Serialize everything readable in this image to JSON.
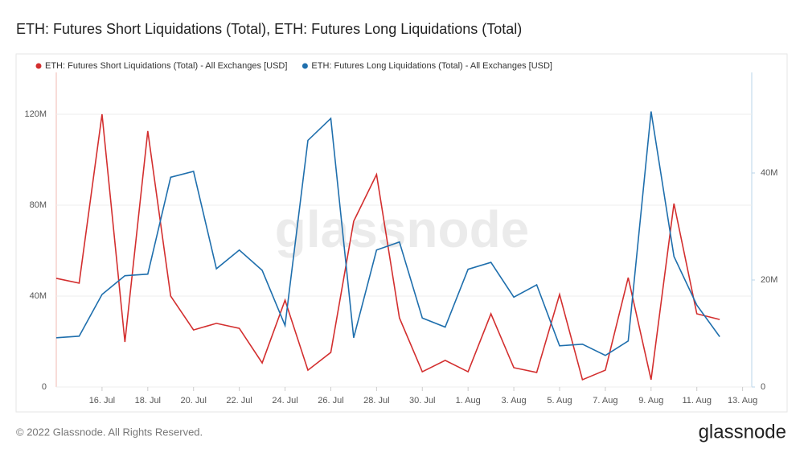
{
  "title": "ETH: Futures Short Liquidations (Total), ETH: Futures Long Liquidations (Total)",
  "watermark": "glassnode",
  "footer": {
    "copyright": "© 2022 Glassnode. All Rights Reserved.",
    "logo": "glassnode"
  },
  "chart_data": {
    "type": "line",
    "x": [
      14,
      15,
      16,
      17,
      18,
      19,
      20,
      21,
      22,
      23,
      24,
      25,
      26,
      27,
      28,
      29,
      30,
      31,
      32,
      33,
      34,
      35,
      36,
      37,
      38,
      39,
      40,
      41,
      42,
      43
    ],
    "xlim": [
      14,
      44.4
    ],
    "xticks": [
      {
        "value": 16,
        "label": "16. Jul"
      },
      {
        "value": 18,
        "label": "18. Jul"
      },
      {
        "value": 20,
        "label": "20. Jul"
      },
      {
        "value": 22,
        "label": "22. Jul"
      },
      {
        "value": 24,
        "label": "24. Jul"
      },
      {
        "value": 26,
        "label": "26. Jul"
      },
      {
        "value": 28,
        "label": "28. Jul"
      },
      {
        "value": 30,
        "label": "30. Jul"
      },
      {
        "value": 32,
        "label": "1. Aug"
      },
      {
        "value": 34,
        "label": "3. Aug"
      },
      {
        "value": 36,
        "label": "5. Aug"
      },
      {
        "value": 38,
        "label": "7. Aug"
      },
      {
        "value": 40,
        "label": "9. Aug"
      },
      {
        "value": 42,
        "label": "11. Aug"
      },
      {
        "value": 44,
        "label": "13. Aug"
      }
    ],
    "ylim": [
      0,
      138.4
    ],
    "yticks": [
      0,
      {
        "value": 40,
        "label": "40M"
      },
      {
        "value": 80,
        "label": "80M"
      },
      {
        "value": 120,
        "label": "120M"
      }
    ],
    "y2lim": [
      0,
      58.8
    ],
    "y2ticks": [
      0,
      {
        "value": 20,
        "label": "20M"
      },
      {
        "value": 40,
        "label": "40M"
      }
    ],
    "grid": true,
    "series": [
      {
        "name": "ETH: Futures Short Liquidations (Total) - All Exchanges [USD]",
        "color": "#d32f2f",
        "values": [
          47.8,
          45.7,
          120,
          19.8,
          112.6,
          40,
          25.1,
          28,
          25.8,
          10.6,
          38.2,
          7.4,
          15.2,
          72.9,
          93.5,
          30.4,
          6.7,
          11.7,
          6.7,
          32.2,
          8.5,
          6.4,
          40.7,
          3.2,
          7.4,
          48.1,
          3.2,
          80.7,
          32.2,
          29.7
        ]
      },
      {
        "name": "ETH: Futures Long Liquidations (Total) - All Exchanges [USD]",
        "color": "#1f6fad",
        "axis": "y2",
        "values": [
          9.2,
          9.5,
          17.3,
          20.8,
          21.1,
          39.2,
          40.3,
          22.1,
          25.6,
          21.8,
          11.5,
          46.1,
          50.2,
          9.2,
          25.6,
          27.1,
          12.9,
          11.2,
          22,
          23.3,
          16.8,
          19.1,
          7.7,
          8,
          5.9,
          8.6,
          51.5,
          24.4,
          15.3,
          9.4
        ]
      }
    ]
  }
}
